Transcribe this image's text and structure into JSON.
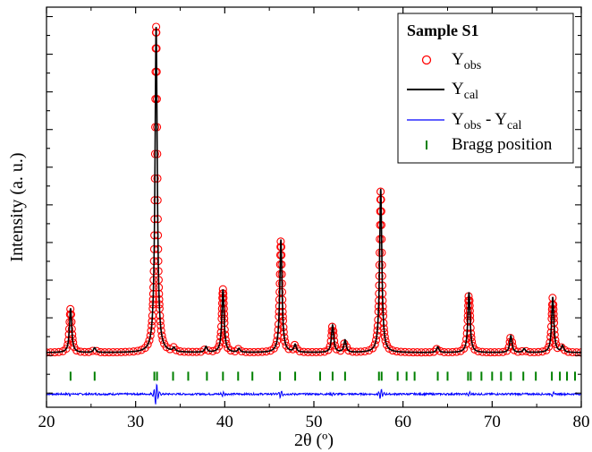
{
  "chart_data": {
    "type": "line",
    "title": "",
    "xlabel": "2θ (º)",
    "ylabel": "Intensity (a. u.)",
    "xlim": [
      20,
      80
    ],
    "x_ticks": [
      20,
      30,
      40,
      50,
      60,
      70,
      80
    ],
    "x_tick_labels": [
      "20",
      "30",
      "40",
      "50",
      "60",
      "70",
      "80"
    ],
    "y_ticks_labeled": false,
    "legend": {
      "title": "Sample S1",
      "position": "top-right",
      "entries": [
        {
          "label": "Yobs",
          "base": "Y",
          "sub": "obs",
          "marker": "open-circle",
          "color": "#ff0000"
        },
        {
          "label": "Ycal",
          "base": "Y",
          "sub": "cal",
          "marker": "line",
          "color": "#000000"
        },
        {
          "label": "Yobs - Ycal",
          "base": "Y",
          "sub": "obs",
          "mid": " - Y",
          "sub2": "cal",
          "marker": "line",
          "color": "#0000ff"
        },
        {
          "label": "Bragg position",
          "base": "Bragg position",
          "marker": "tick",
          "color": "#008000"
        }
      ]
    },
    "series": [
      {
        "name": "Yobs",
        "style": "open-circle",
        "color": "#ff0000",
        "background": 3,
        "peak_width": 0.15,
        "peaks": [
          {
            "x": 22.7,
            "y": 47
          },
          {
            "x": 25.4,
            "y": 5
          },
          {
            "x": 32.3,
            "y": 346
          },
          {
            "x": 34.3,
            "y": 4
          },
          {
            "x": 37.9,
            "y": 6
          },
          {
            "x": 39.8,
            "y": 67
          },
          {
            "x": 41.6,
            "y": 4
          },
          {
            "x": 46.3,
            "y": 120
          },
          {
            "x": 47.9,
            "y": 8
          },
          {
            "x": 52.1,
            "y": 29
          },
          {
            "x": 53.5,
            "y": 13
          },
          {
            "x": 57.5,
            "y": 174
          },
          {
            "x": 63.9,
            "y": 6
          },
          {
            "x": 67.4,
            "y": 64
          },
          {
            "x": 72.1,
            "y": 18
          },
          {
            "x": 73.6,
            "y": 4
          },
          {
            "x": 76.8,
            "y": 59
          },
          {
            "x": 77.9,
            "y": 7
          }
        ]
      },
      {
        "name": "Ycal",
        "style": "line",
        "color": "#000000",
        "same_profile_as": "Yobs"
      },
      {
        "name": "Yobs - Ycal",
        "style": "line",
        "color": "#0000ff",
        "offset": -41,
        "noise_amplitude": 2
      }
    ],
    "bragg_positions": {
      "color": "#008000",
      "y": -22,
      "x": [
        22.7,
        25.4,
        32.1,
        32.4,
        34.2,
        35.9,
        38.0,
        39.8,
        41.5,
        43.1,
        46.2,
        47.9,
        50.7,
        52.1,
        53.5,
        57.3,
        57.6,
        59.4,
        60.4,
        61.3,
        63.9,
        65.0,
        67.3,
        67.6,
        68.8,
        70.0,
        71.0,
        72.1,
        73.5,
        74.9,
        76.7,
        77.6,
        78.4,
        79.3
      ]
    },
    "ylim": [
      -55,
      370
    ]
  }
}
